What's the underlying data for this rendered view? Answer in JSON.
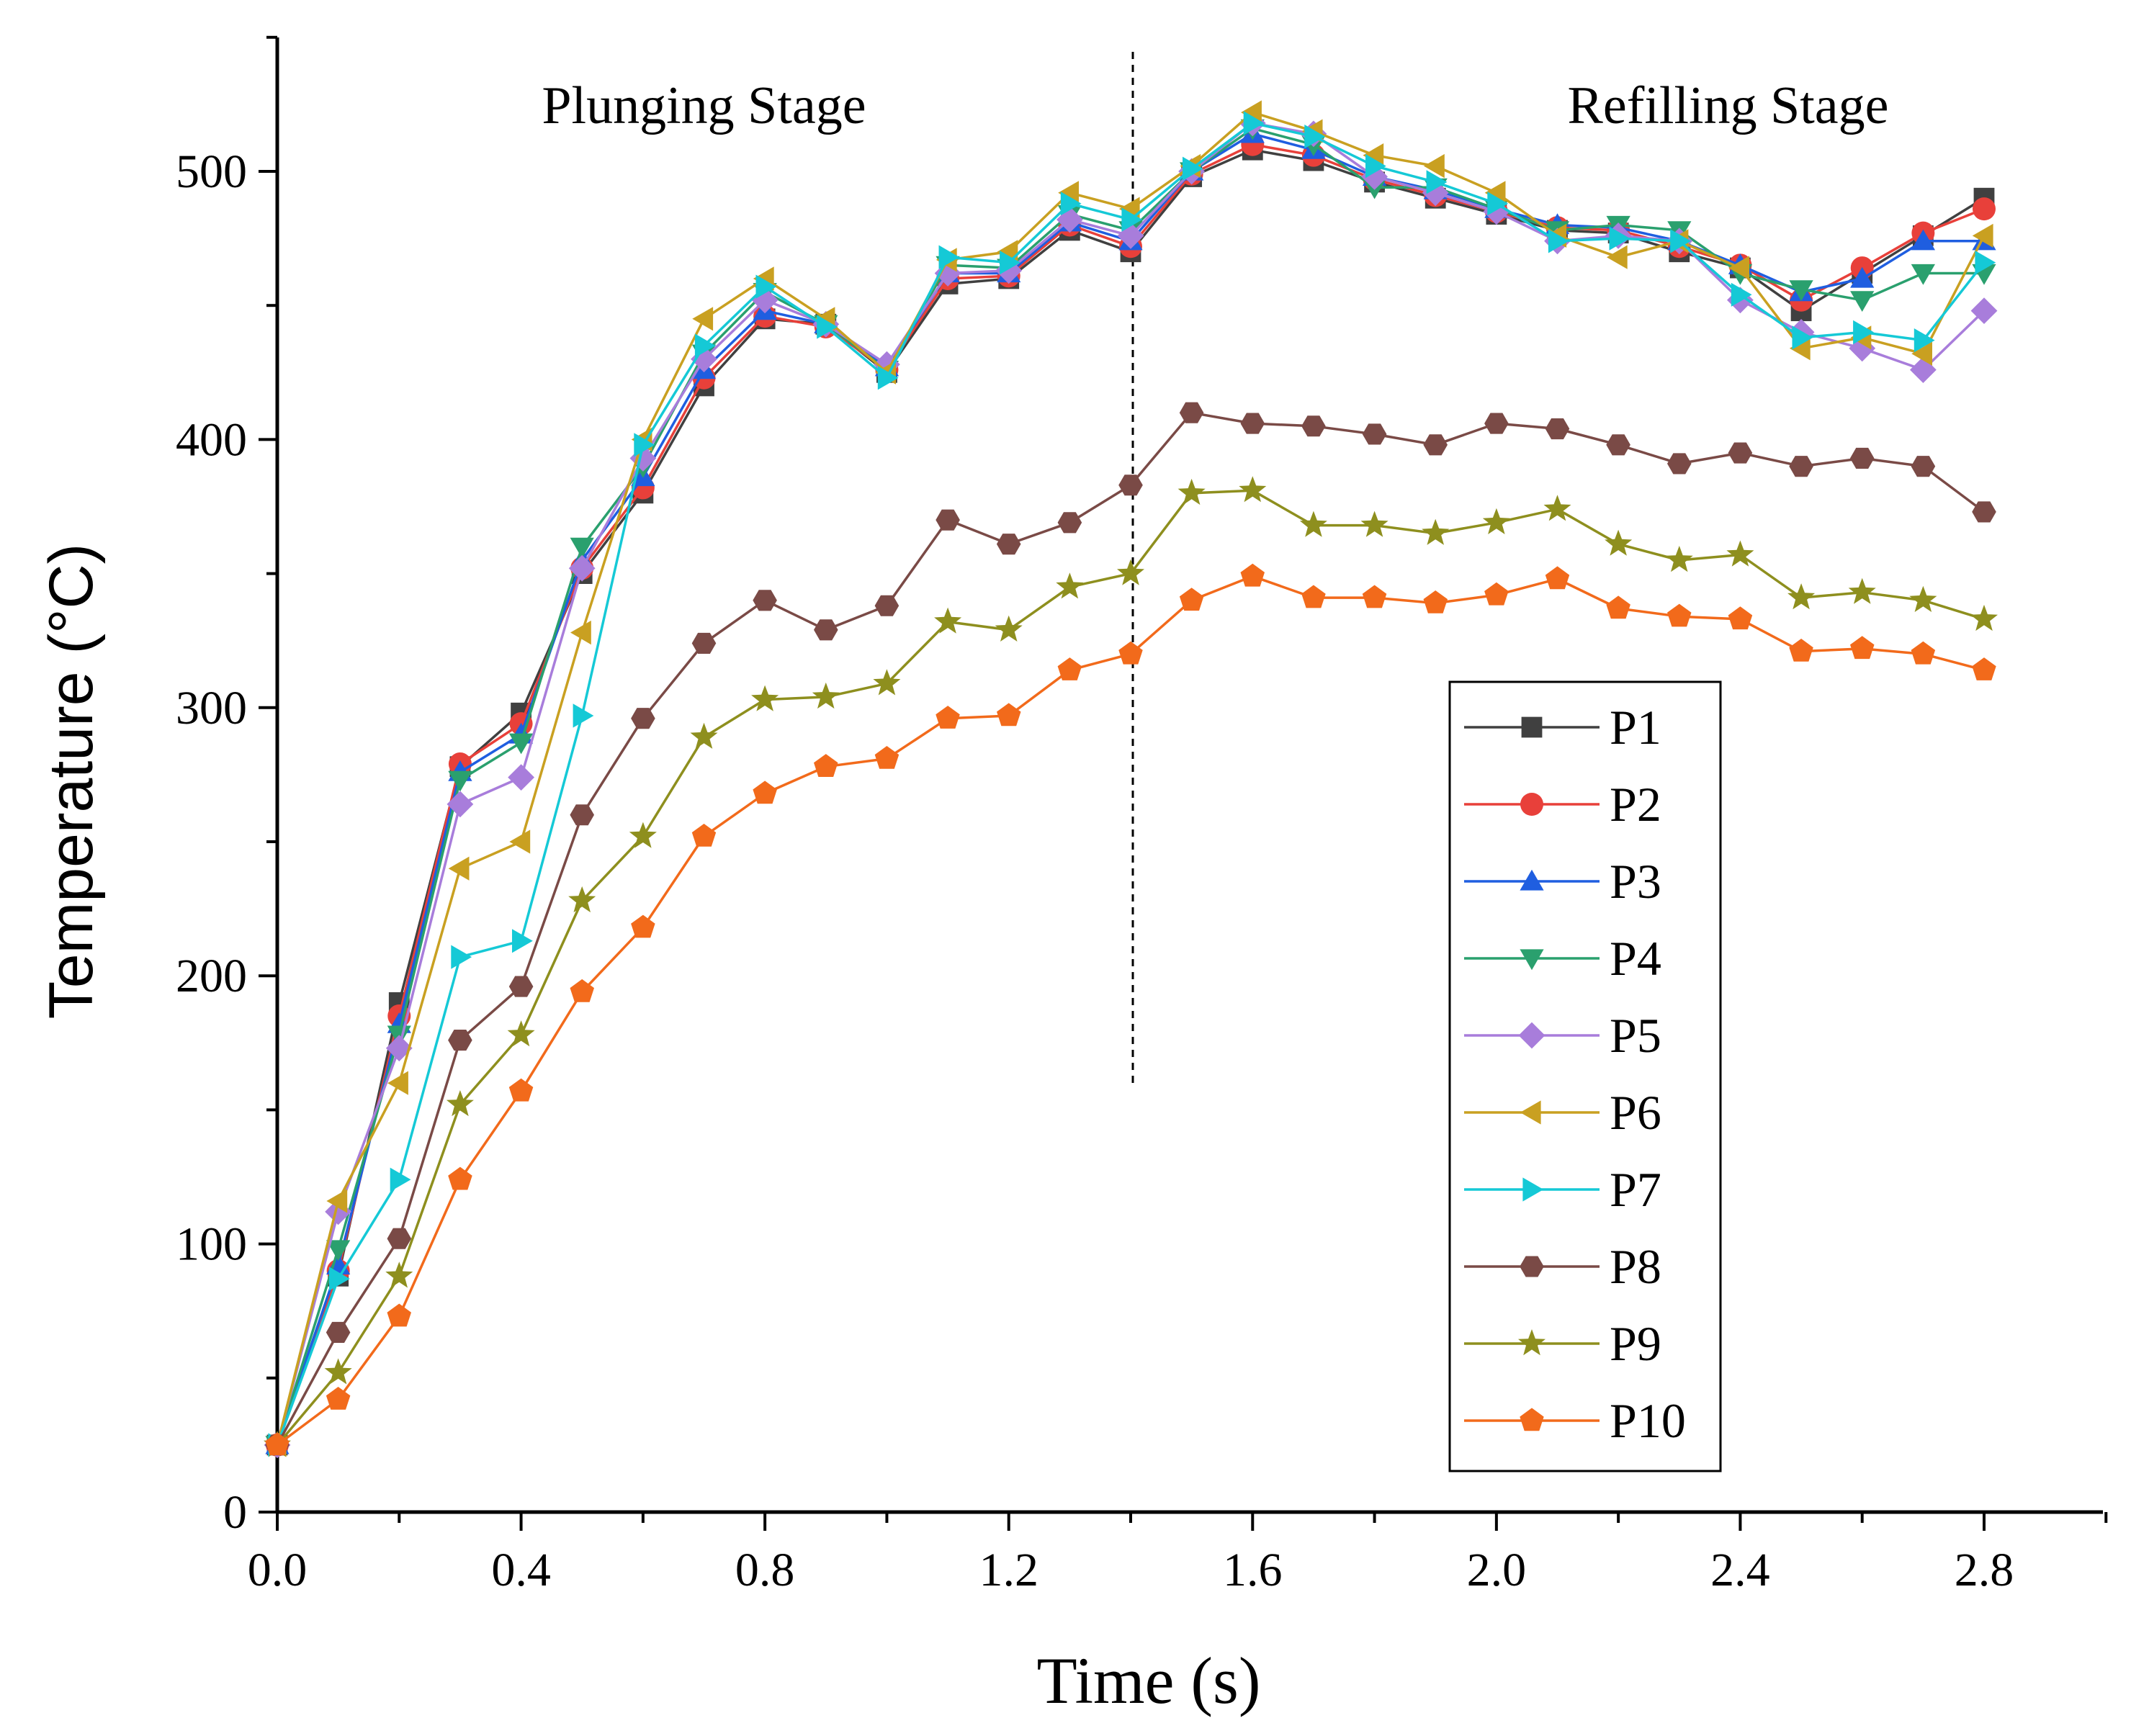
{
  "chart_data": {
    "type": "line",
    "title": "",
    "xlabel": "Time (s)",
    "ylabel": "Temperature (°C)",
    "xlim": [
      0,
      3.0
    ],
    "ylim": [
      0,
      550
    ],
    "xticks": [
      0.0,
      0.4,
      0.8,
      1.2,
      1.6,
      2.0,
      2.4,
      2.8
    ],
    "xtick_labels": [
      "0.0",
      "0.4",
      "0.8",
      "1.2",
      "1.6",
      "2.0",
      "2.4",
      "2.8"
    ],
    "yticks": [
      0,
      100,
      200,
      300,
      400,
      500
    ],
    "ytick_labels": [
      "0",
      "100",
      "200",
      "300",
      "400",
      "500"
    ],
    "grid": false,
    "legend_position": "lower-right",
    "divider_x": 1.4,
    "annotations": [
      {
        "text": "Plunging Stage",
        "x": 0.7,
        "y": 518
      },
      {
        "text": "Refilling Stage",
        "x": 2.38,
        "y": 518
      }
    ],
    "x": [
      0.0,
      0.1,
      0.2,
      0.3,
      0.4,
      0.5,
      0.6,
      0.7,
      0.8,
      0.9,
      1.0,
      1.1,
      1.2,
      1.3,
      1.4,
      1.5,
      1.6,
      1.7,
      1.8,
      1.9,
      2.0,
      2.1,
      2.2,
      2.3,
      2.4,
      2.5,
      2.6,
      2.7,
      2.8
    ],
    "series": [
      {
        "name": "P1",
        "color": "#404040",
        "marker": "square",
        "values": [
          25,
          88,
          190,
          278,
          298,
          350,
          380,
          420,
          445,
          443,
          425,
          458,
          460,
          478,
          470,
          498,
          508,
          504,
          496,
          490,
          484,
          478,
          477,
          470,
          464,
          448,
          462,
          476,
          490
        ]
      },
      {
        "name": "P2",
        "color": "#e8403a",
        "marker": "circle",
        "values": [
          25,
          90,
          185,
          279,
          294,
          352,
          382,
          423,
          446,
          442,
          426,
          460,
          461,
          480,
          472,
          499,
          510,
          506,
          497,
          491,
          485,
          479,
          478,
          472,
          465,
          452,
          464,
          477,
          486
        ]
      },
      {
        "name": "P3",
        "color": "#1f5ee0",
        "marker": "triangle-up",
        "values": [
          25,
          92,
          182,
          276,
          290,
          355,
          386,
          426,
          448,
          443,
          427,
          462,
          462,
          481,
          474,
          500,
          514,
          508,
          498,
          493,
          486,
          480,
          479,
          474,
          465,
          455,
          460,
          474,
          474
        ]
      },
      {
        "name": "P4",
        "color": "#2aa06e",
        "marker": "triangle-down",
        "values": [
          25,
          98,
          178,
          273,
          287,
          360,
          390,
          432,
          455,
          443,
          426,
          465,
          464,
          484,
          478,
          500,
          516,
          510,
          494,
          494,
          486,
          478,
          480,
          478,
          462,
          456,
          452,
          462,
          462
        ]
      },
      {
        "name": "P5",
        "color": "#a87ddb",
        "marker": "diamond",
        "values": [
          25,
          112,
          173,
          264,
          274,
          352,
          393,
          430,
          452,
          443,
          428,
          462,
          463,
          482,
          476,
          500,
          518,
          514,
          498,
          492,
          485,
          474,
          476,
          474,
          452,
          440,
          434,
          426,
          448
        ]
      },
      {
        "name": "P6",
        "color": "#c9a021",
        "marker": "triangle-left",
        "values": [
          25,
          116,
          160,
          240,
          250,
          328,
          400,
          445,
          460,
          445,
          425,
          467,
          470,
          492,
          486,
          502,
          522,
          515,
          506,
          502,
          492,
          476,
          468,
          474,
          464,
          434,
          438,
          432,
          476
        ]
      },
      {
        "name": "P7",
        "color": "#15c9d6",
        "marker": "triangle-right",
        "values": [
          25,
          87,
          124,
          207,
          213,
          297,
          398,
          435,
          457,
          442,
          423,
          468,
          466,
          488,
          482,
          501,
          518,
          513,
          502,
          496,
          488,
          474,
          475,
          474,
          454,
          438,
          440,
          437,
          466
        ]
      },
      {
        "name": "P8",
        "color": "#7a4a46",
        "marker": "hexagon",
        "values": [
          25,
          67,
          102,
          176,
          196,
          260,
          296,
          324,
          340,
          329,
          338,
          370,
          361,
          369,
          383,
          410,
          406,
          405,
          402,
          398,
          406,
          404,
          398,
          391,
          395,
          390,
          393,
          390,
          373
        ]
      },
      {
        "name": "P9",
        "color": "#8e8f1e",
        "marker": "star",
        "values": [
          25,
          52,
          88,
          152,
          178,
          228,
          252,
          289,
          303,
          304,
          309,
          332,
          329,
          345,
          350,
          380,
          381,
          368,
          368,
          365,
          369,
          374,
          361,
          355,
          357,
          341,
          343,
          340,
          333
        ]
      },
      {
        "name": "P10",
        "color": "#f26a1b",
        "marker": "pentagon",
        "values": [
          25,
          42,
          73,
          124,
          157,
          194,
          218,
          252,
          268,
          278,
          281,
          296,
          297,
          314,
          320,
          340,
          349,
          341,
          341,
          339,
          342,
          348,
          337,
          334,
          333,
          321,
          322,
          320,
          314
        ]
      }
    ]
  }
}
